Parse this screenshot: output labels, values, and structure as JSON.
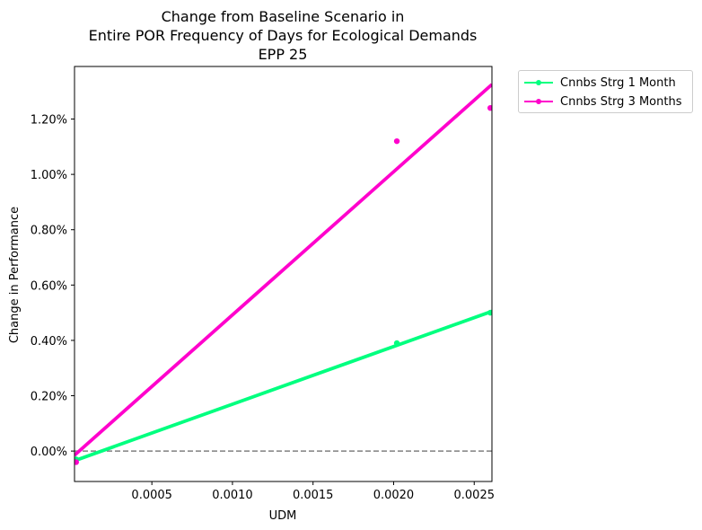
{
  "chart_data": {
    "type": "scatter",
    "title_lines": [
      "Change from Baseline Scenario in",
      "Entire POR Frequency of Days for Ecological Demands",
      "EPP 25"
    ],
    "xlabel": "UDM",
    "ylabel": "Change in Performance",
    "xlim": [
      2e-05,
      0.00261
    ],
    "ylim": [
      -0.0011,
      0.0139
    ],
    "x_ticks": [
      0.0005,
      0.001,
      0.0015,
      0.002,
      0.0025
    ],
    "x_tick_labels": [
      "0.0005",
      "0.0010",
      "0.0015",
      "0.0020",
      "0.0025"
    ],
    "y_ticks": [
      0.0,
      0.002,
      0.004,
      0.006,
      0.008,
      0.01,
      0.012
    ],
    "y_tick_labels": [
      "0.00%",
      "0.20%",
      "0.40%",
      "0.60%",
      "0.80%",
      "1.00%",
      "1.20%"
    ],
    "reference_line": {
      "y": 0.0,
      "style": "dashed",
      "color": "#808080"
    },
    "legend_position": "outside upper right",
    "series": [
      {
        "name": "Cnnbs Strg 1 Month",
        "color": "#00FF7F",
        "points": [
          [
            3e-05,
            -0.0003
          ],
          [
            0.00202,
            0.0039
          ],
          [
            0.0026,
            0.005
          ]
        ],
        "trend_line": [
          [
            2e-05,
            -0.00035
          ],
          [
            0.00261,
            0.00505
          ]
        ]
      },
      {
        "name": "Cnnbs Strg 3 Months",
        "color": "#FF00CC",
        "points": [
          [
            3e-05,
            -0.0004
          ],
          [
            0.00202,
            0.0112
          ],
          [
            0.0026,
            0.0124
          ]
        ],
        "trend_line": [
          [
            2e-05,
            -0.00015
          ],
          [
            0.00261,
            0.01325
          ]
        ]
      }
    ]
  }
}
